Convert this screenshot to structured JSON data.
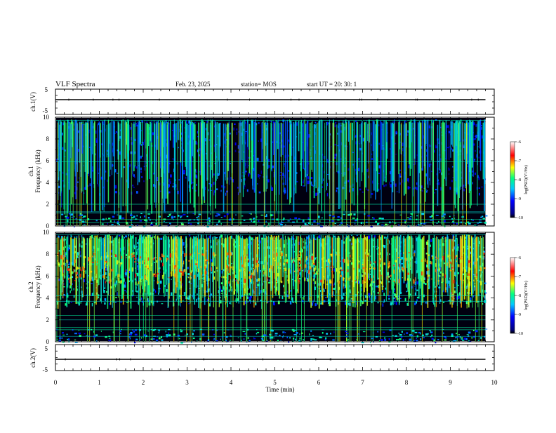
{
  "header": {
    "title": "VLF Spectra",
    "date": "Feb. 23, 2025",
    "station": "station= MOS",
    "start": "start  UT  =   20: 30: 1"
  },
  "chart_data": [
    {
      "type": "line",
      "ylabel": "ch.1(V)",
      "ylim": [
        -5,
        5
      ],
      "yticks": [
        "5",
        "-5"
      ],
      "xlim": [
        0,
        10
      ],
      "trace_level": 0
    },
    {
      "type": "heatmap",
      "ylabel_line1": "ch.1",
      "ylabel_line2": "Frequency (kHz)",
      "ylim": [
        0,
        10
      ],
      "yticks": [
        "0",
        "2",
        "4",
        "6",
        "8",
        "10"
      ],
      "xlim": [
        0,
        10
      ],
      "data_until_min": 9.8,
      "colorbar": {
        "label": "log(PSD)(V²/Hz)",
        "range": [
          -10,
          -6
        ],
        "ticks": [
          "-6",
          "-7",
          "-8",
          "-9",
          "-10"
        ]
      }
    },
    {
      "type": "heatmap",
      "ylabel_line1": "ch.2",
      "ylabel_line2": "Frequency (kHz)",
      "ylim": [
        0,
        10
      ],
      "yticks": [
        "0",
        "2",
        "4",
        "6",
        "8",
        "10"
      ],
      "xlim": [
        0,
        10
      ],
      "data_until_min": 9.8,
      "colorbar": {
        "label": "log(PSD)(V²/Hz)",
        "range": [
          -10,
          -6
        ],
        "ticks": [
          "-6",
          "-7",
          "-8",
          "-9",
          "-10"
        ]
      }
    },
    {
      "type": "line",
      "ylabel": "ch.2(V)",
      "ylim": [
        -5,
        5
      ],
      "yticks": [
        "5",
        "-5"
      ],
      "xlim": [
        0,
        10
      ],
      "trace_level": 0
    }
  ],
  "xaxis": {
    "label": "Time (min)",
    "ticks": [
      "0",
      "1",
      "2",
      "3",
      "4",
      "5",
      "6",
      "7",
      "8",
      "9",
      "10"
    ]
  },
  "colors": {
    "colormap": [
      "#000080",
      "#0000ff",
      "#00c8ff",
      "#00ff80",
      "#ffff00",
      "#ff0000",
      "#ffffff"
    ]
  }
}
